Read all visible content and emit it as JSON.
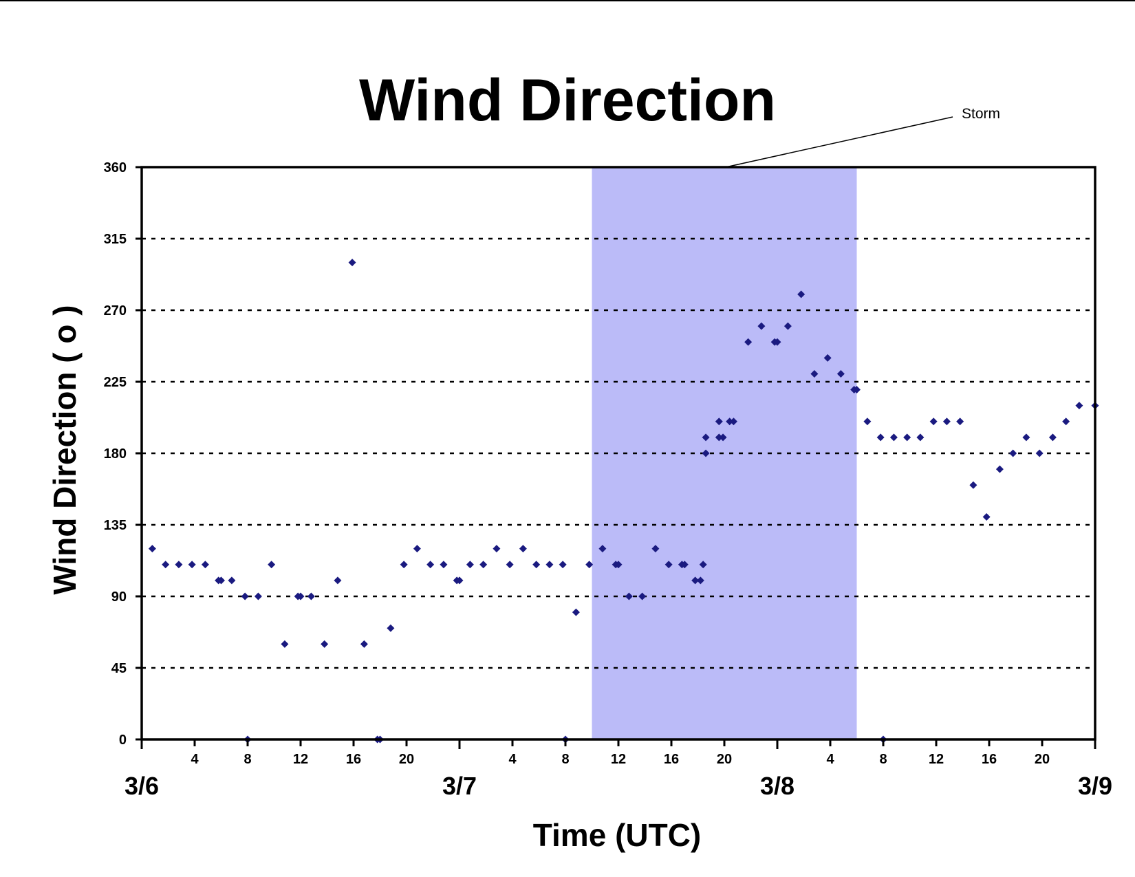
{
  "chart_data": {
    "type": "scatter",
    "title": "Wind Direction",
    "xlabel": "Time (UTC)",
    "ylabel": "Wind Direction ( o )",
    "ylim": [
      0,
      360
    ],
    "yticks": [
      "0",
      "45",
      "90",
      "135",
      "180",
      "225",
      "270",
      "315",
      "360"
    ],
    "xlim_hours": [
      0,
      72
    ],
    "xtick_labels": [
      "4",
      "8",
      "12",
      "16",
      "20",
      "4",
      "8",
      "12",
      "16",
      "20",
      "4",
      "8",
      "12",
      "16",
      "20"
    ],
    "day_labels": [
      "3/6",
      "3/7",
      "3/8",
      "3/9"
    ],
    "grid": "dotted horizontal",
    "shaded_region": {
      "label": "Storm",
      "x_start": 34.0,
      "x_end": 54.0,
      "color": "#bbbbf8"
    },
    "marker_color": "#1a1a80",
    "series": [
      {
        "points": [
          [
            0.8,
            120
          ],
          [
            1.8,
            110
          ],
          [
            2.8,
            110
          ],
          [
            3.8,
            110
          ],
          [
            4.8,
            110
          ],
          [
            5.8,
            100
          ],
          [
            6.0,
            100
          ],
          [
            6.8,
            100
          ],
          [
            7.8,
            90
          ],
          [
            8.0,
            0
          ],
          [
            8.8,
            90
          ],
          [
            9.8,
            110
          ],
          [
            10.8,
            60
          ],
          [
            11.8,
            90
          ],
          [
            12.0,
            90
          ],
          [
            12.8,
            90
          ],
          [
            13.8,
            60
          ],
          [
            14.8,
            100
          ],
          [
            15.9,
            300
          ],
          [
            16.8,
            60
          ],
          [
            17.8,
            0
          ],
          [
            18.0,
            0
          ],
          [
            18.8,
            70
          ],
          [
            19.8,
            110
          ],
          [
            20.8,
            120
          ],
          [
            21.8,
            110
          ],
          [
            22.8,
            110
          ],
          [
            23.8,
            100
          ],
          [
            24.0,
            100
          ],
          [
            24.8,
            110
          ],
          [
            25.8,
            110
          ],
          [
            26.8,
            120
          ],
          [
            27.8,
            110
          ],
          [
            28.8,
            120
          ],
          [
            29.8,
            110
          ],
          [
            30.8,
            110
          ],
          [
            31.8,
            110
          ],
          [
            32.0,
            0
          ],
          [
            32.8,
            80
          ],
          [
            33.8,
            110
          ],
          [
            34.8,
            120
          ],
          [
            35.8,
            110
          ],
          [
            36.0,
            110
          ],
          [
            36.8,
            90
          ],
          [
            37.8,
            90
          ],
          [
            38.8,
            120
          ],
          [
            39.8,
            110
          ],
          [
            40.8,
            110
          ],
          [
            41.0,
            110
          ],
          [
            41.8,
            100
          ],
          [
            42.2,
            100
          ],
          [
            42.4,
            110
          ],
          [
            42.6,
            190
          ],
          [
            42.6,
            180
          ],
          [
            43.6,
            190
          ],
          [
            43.6,
            200
          ],
          [
            43.9,
            190
          ],
          [
            44.4,
            200
          ],
          [
            44.7,
            200
          ],
          [
            45.8,
            250
          ],
          [
            46.8,
            260
          ],
          [
            47.8,
            250
          ],
          [
            48.0,
            250
          ],
          [
            48.8,
            260
          ],
          [
            49.8,
            280
          ],
          [
            50.8,
            230
          ],
          [
            51.8,
            240
          ],
          [
            52.8,
            230
          ],
          [
            53.8,
            220
          ],
          [
            54.0,
            220
          ],
          [
            54.8,
            200
          ],
          [
            56.0,
            0
          ],
          [
            55.8,
            190
          ],
          [
            56.8,
            190
          ],
          [
            57.8,
            190
          ],
          [
            58.8,
            190
          ],
          [
            59.8,
            200
          ],
          [
            60.8,
            200
          ],
          [
            61.8,
            200
          ],
          [
            62.8,
            160
          ],
          [
            63.8,
            140
          ],
          [
            64.8,
            170
          ],
          [
            65.8,
            180
          ],
          [
            66.8,
            190
          ],
          [
            67.8,
            180
          ],
          [
            68.8,
            190
          ],
          [
            69.8,
            200
          ],
          [
            70.8,
            210
          ],
          [
            72.0,
            210
          ]
        ]
      }
    ]
  }
}
